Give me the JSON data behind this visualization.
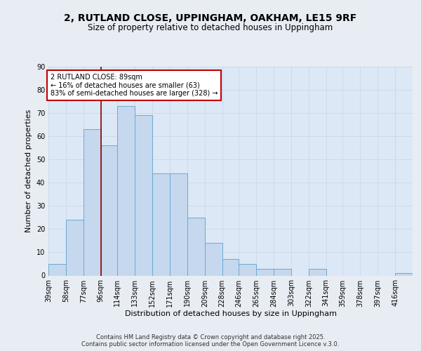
{
  "title_line1": "2, RUTLAND CLOSE, UPPINGHAM, OAKHAM, LE15 9RF",
  "title_line2": "Size of property relative to detached houses in Uppingham",
  "xlabel": "Distribution of detached houses by size in Uppingham",
  "ylabel": "Number of detached properties",
  "bar_labels": [
    "39sqm",
    "58sqm",
    "77sqm",
    "96sqm",
    "114sqm",
    "133sqm",
    "152sqm",
    "171sqm",
    "190sqm",
    "209sqm",
    "228sqm",
    "246sqm",
    "265sqm",
    "284sqm",
    "303sqm",
    "322sqm",
    "341sqm",
    "359sqm",
    "378sqm",
    "397sqm",
    "416sqm"
  ],
  "bins": [
    39,
    58,
    77,
    96,
    114,
    133,
    152,
    171,
    190,
    209,
    228,
    246,
    265,
    284,
    303,
    322,
    341,
    359,
    378,
    397,
    416
  ],
  "heights": [
    5,
    24,
    63,
    56,
    73,
    69,
    44,
    44,
    25,
    14,
    7,
    5,
    3,
    3,
    0,
    3,
    0,
    0,
    0,
    0,
    1
  ],
  "bar_color": "#c5d8ee",
  "bar_edge_color": "#6aaad4",
  "vline_x": 96,
  "vline_color": "#8b0000",
  "annotation_text": "2 RUTLAND CLOSE: 89sqm\n← 16% of detached houses are smaller (63)\n83% of semi-detached houses are larger (328) →",
  "annotation_box_color": "white",
  "annotation_box_edge": "#c00000",
  "footer_line1": "Contains HM Land Registry data © Crown copyright and database right 2025.",
  "footer_line2": "Contains public sector information licensed under the Open Government Licence v.3.0.",
  "bg_color": "#e8edf4",
  "plot_bg_color": "#dce8f5",
  "grid_color": "#c8d8ea",
  "ylim": [
    0,
    90
  ],
  "yticks": [
    0,
    10,
    20,
    30,
    40,
    50,
    60,
    70,
    80,
    90
  ]
}
